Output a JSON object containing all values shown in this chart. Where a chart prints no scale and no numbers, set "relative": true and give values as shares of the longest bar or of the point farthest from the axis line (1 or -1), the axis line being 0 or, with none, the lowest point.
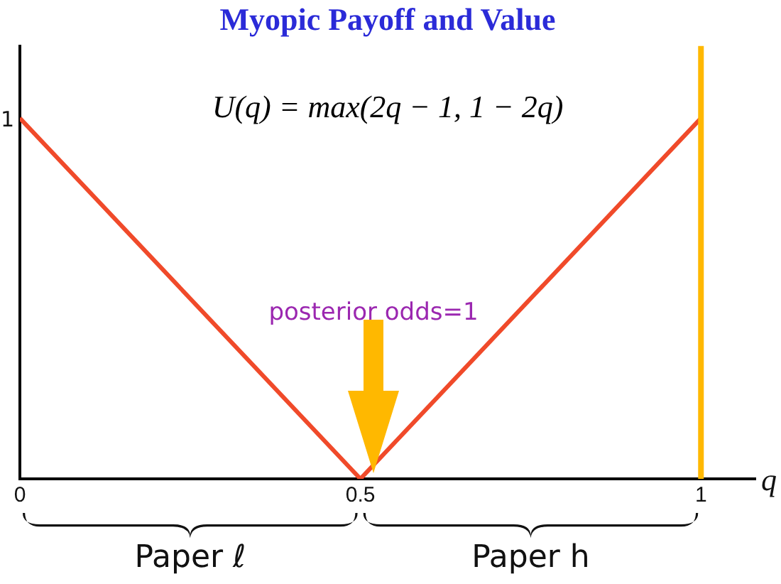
{
  "chart_data": {
    "type": "line",
    "title": "Myopic Payoff and Value",
    "xlabel": "q",
    "x": [
      0,
      0.5,
      1
    ],
    "series": [
      {
        "color": "#f04a2a",
        "values": [
          1,
          0,
          1
        ]
      }
    ],
    "xlim": [
      0,
      1.08
    ],
    "xticks": [
      0,
      0.5,
      1
    ],
    "relative": true,
    "ref_lines": [
      {
        "axis": "x",
        "value": 1,
        "color": "#ffb800"
      }
    ],
    "annotations": [
      "1",
      "U(q) = max(2q − 1, 1 − 2q)",
      "posterior odds=1",
      "Paper ℓ",
      "Paper h"
    ],
    "grid": false,
    "legend": false,
    "marker": "none",
    "line_style": "solid"
  }
}
